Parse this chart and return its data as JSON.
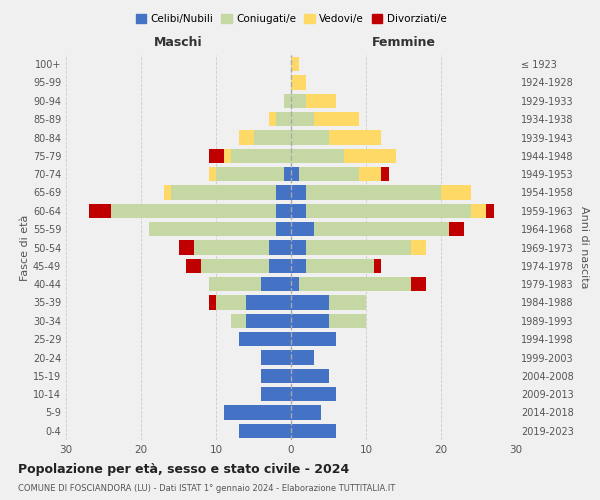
{
  "age_groups": [
    "0-4",
    "5-9",
    "10-14",
    "15-19",
    "20-24",
    "25-29",
    "30-34",
    "35-39",
    "40-44",
    "45-49",
    "50-54",
    "55-59",
    "60-64",
    "65-69",
    "70-74",
    "75-79",
    "80-84",
    "85-89",
    "90-94",
    "95-99",
    "100+"
  ],
  "birth_years": [
    "2019-2023",
    "2014-2018",
    "2009-2013",
    "2004-2008",
    "1999-2003",
    "1994-1998",
    "1989-1993",
    "1984-1988",
    "1979-1983",
    "1974-1978",
    "1969-1973",
    "1964-1968",
    "1959-1963",
    "1954-1958",
    "1949-1953",
    "1944-1948",
    "1939-1943",
    "1934-1938",
    "1929-1933",
    "1924-1928",
    "≤ 1923"
  ],
  "male": {
    "celibe": [
      7,
      9,
      4,
      4,
      4,
      7,
      6,
      6,
      4,
      3,
      3,
      2,
      2,
      2,
      1,
      0,
      0,
      0,
      0,
      0,
      0
    ],
    "coniugato": [
      0,
      0,
      0,
      0,
      0,
      0,
      2,
      4,
      7,
      9,
      10,
      17,
      22,
      14,
      9,
      8,
      5,
      2,
      1,
      0,
      0
    ],
    "vedovo": [
      0,
      0,
      0,
      0,
      0,
      0,
      0,
      0,
      0,
      0,
      0,
      0,
      0,
      1,
      1,
      1,
      2,
      1,
      0,
      0,
      0
    ],
    "divorziato": [
      0,
      0,
      0,
      0,
      0,
      0,
      0,
      1,
      0,
      2,
      2,
      0,
      3,
      0,
      0,
      2,
      0,
      0,
      0,
      0,
      0
    ]
  },
  "female": {
    "nubile": [
      6,
      4,
      6,
      5,
      3,
      6,
      5,
      5,
      1,
      2,
      2,
      3,
      2,
      2,
      1,
      0,
      0,
      0,
      0,
      0,
      0
    ],
    "coniugata": [
      0,
      0,
      0,
      0,
      0,
      0,
      5,
      5,
      15,
      9,
      14,
      18,
      22,
      18,
      8,
      7,
      5,
      3,
      2,
      0,
      0
    ],
    "vedova": [
      0,
      0,
      0,
      0,
      0,
      0,
      0,
      0,
      0,
      0,
      2,
      0,
      2,
      4,
      3,
      7,
      7,
      6,
      4,
      2,
      1
    ],
    "divorziata": [
      0,
      0,
      0,
      0,
      0,
      0,
      0,
      0,
      2,
      1,
      0,
      2,
      1,
      0,
      1,
      0,
      0,
      0,
      0,
      0,
      0
    ]
  },
  "colors": {
    "celibe": "#4472C4",
    "coniugato": "#C5D8A4",
    "vedovo": "#FFD966",
    "divorziato": "#C00000"
  },
  "legend_labels": [
    "Celibi/Nubili",
    "Coniugati/e",
    "Vedovi/e",
    "Divorziati/e"
  ],
  "title": "Popolazione per età, sesso e stato civile - 2024",
  "subtitle": "COMUNE DI FOSCIANDORA (LU) - Dati ISTAT 1° gennaio 2024 - Elaborazione TUTTITALIA.IT",
  "xlabel_left": "Maschi",
  "xlabel_right": "Femmine",
  "ylabel_left": "Fasce di età",
  "ylabel_right": "Anni di nascita",
  "xlim": 30,
  "background_color": "#f0f0f0"
}
